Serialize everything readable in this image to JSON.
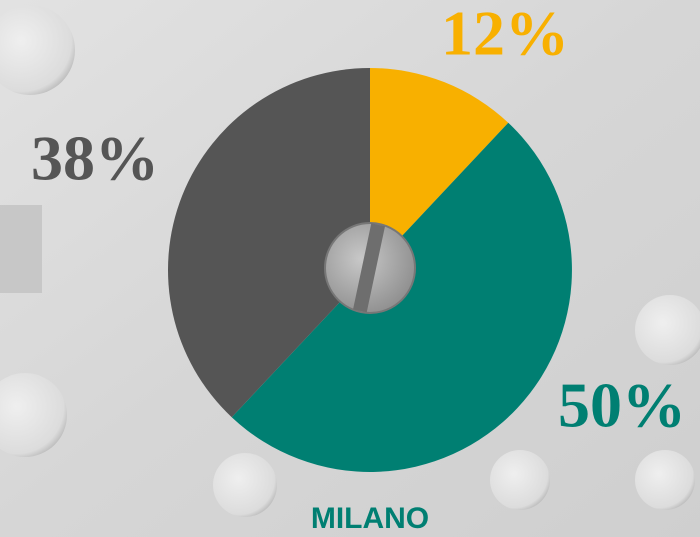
{
  "chart_data": {
    "type": "pie",
    "title": "MILANO",
    "values": [
      12,
      50,
      38
    ],
    "value_labels": [
      "12%",
      "50%",
      "38%"
    ],
    "colors": [
      "#f8b000",
      "#007f72",
      "#555555"
    ]
  }
}
